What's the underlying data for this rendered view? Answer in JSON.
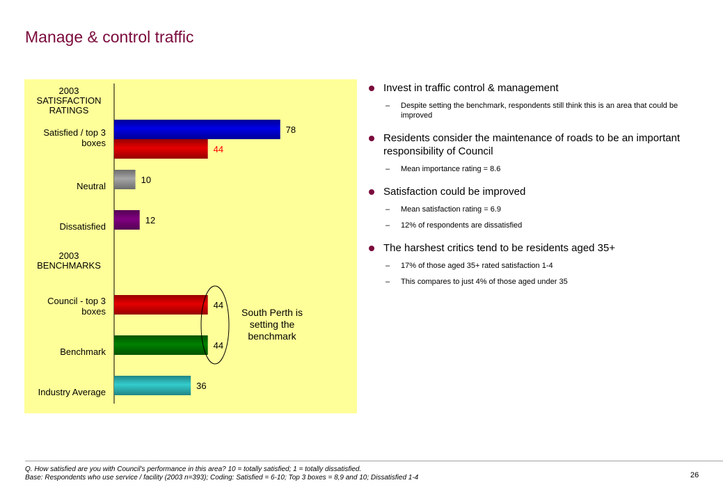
{
  "title": "Manage & control traffic",
  "chart_data": {
    "type": "bar",
    "orientation": "horizontal",
    "groups": [
      {
        "heading": [
          "2003",
          "SATISFACTION",
          "RATINGS"
        ],
        "rows": [
          {
            "label": [
              "Satisfied / top 3",
              "boxes"
            ],
            "bars": [
              {
                "value": 78,
                "color": "#0000e6"
              },
              {
                "value": 44,
                "color": "#e60000",
                "label_color": "#ff0000"
              }
            ]
          },
          {
            "label": [
              "Neutral"
            ],
            "bars": [
              {
                "value": 10,
                "color": "#a6a6a6"
              }
            ]
          },
          {
            "label": [
              "Dissatisfied"
            ],
            "bars": [
              {
                "value": 12,
                "color": "#800080"
              }
            ]
          }
        ]
      },
      {
        "heading": [
          "2003",
          "BENCHMARKS"
        ],
        "rows": [
          {
            "label": [
              "Council - top 3",
              "boxes"
            ],
            "bars": [
              {
                "value": 44,
                "color": "#e60000"
              }
            ]
          },
          {
            "label": [
              "Benchmark"
            ],
            "bars": [
              {
                "value": 44,
                "color": "#008000"
              }
            ]
          },
          {
            "label": [
              "Industry Average"
            ],
            "bars": [
              {
                "value": 36,
                "color": "#33cccc"
              }
            ]
          }
        ]
      }
    ],
    "xlim": [
      0,
      100
    ],
    "annotation": [
      "South Perth is",
      "setting the",
      "benchmark"
    ]
  },
  "bullets": [
    {
      "text": "Invest in traffic control & management",
      "subs": [
        "Despite setting the benchmark, respondents still think this is an area that could be improved"
      ]
    },
    {
      "text": "Residents consider the maintenance of roads to be an important responsibility of Council",
      "subs": [
        "Mean importance rating = 8.6"
      ]
    },
    {
      "text": "Satisfaction could be improved",
      "subs": [
        "Mean satisfaction rating = 6.9",
        "12% of respondents are dissatisfied"
      ]
    },
    {
      "text": "The harshest critics tend to be residents aged 35+",
      "subs": [
        "17% of those aged 35+ rated satisfaction 1-4",
        "This compares to just 4% of those aged under 35"
      ]
    }
  ],
  "sub_dash": "–",
  "footer": {
    "question": "Q. How satisfied are you with Council's performance in this area?  10 = totally satisfied; 1 = totally dissatisfied.",
    "base": "Base: Respondents who use service / facility (2003 n=393);  Coding: Satisfied = 6-10; Top 3 boxes = 8,9 and 10; Dissatisfied 1-4"
  },
  "page_number": "26",
  "colors": {
    "title": "#7a0a3c",
    "panel": "#ffff99",
    "bullet": "#7a0a3c"
  }
}
